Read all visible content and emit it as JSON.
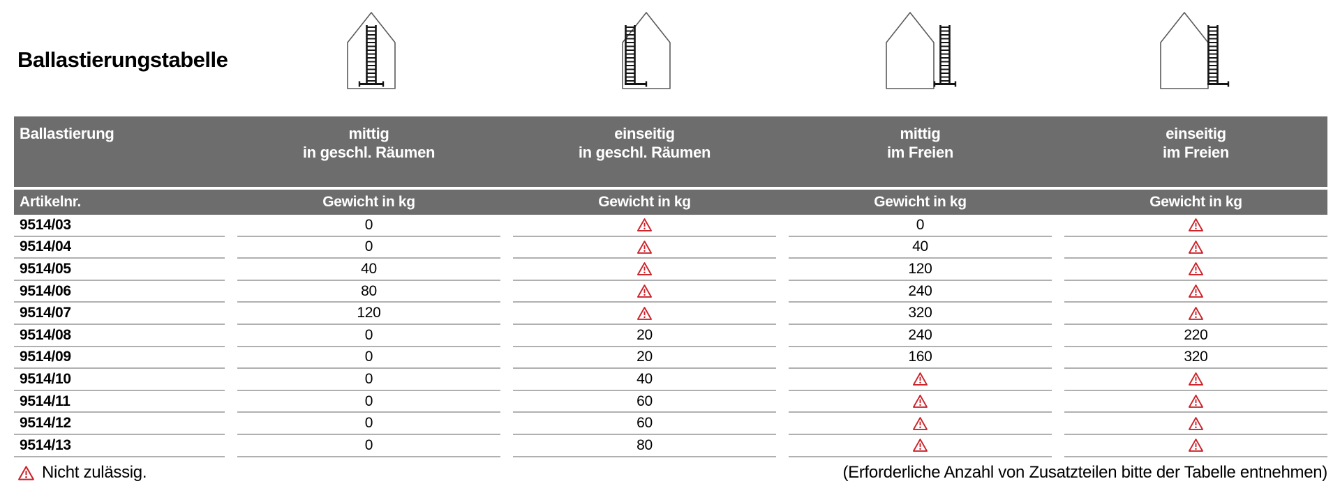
{
  "title": "Ballastierungstabelle",
  "colors": {
    "header_gray": "#6d6d6d",
    "row_line": "#b0b0b0",
    "warning_red": "#cc2229"
  },
  "icons": [
    {
      "name": "house-ladder-centered-indoor-icon"
    },
    {
      "name": "house-ladder-one-side-indoor-icon"
    },
    {
      "name": "house-ladder-centered-outdoor-icon"
    },
    {
      "name": "house-ladder-one-side-outdoor-icon"
    }
  ],
  "table": {
    "group_header": {
      "col1": "Ballastierung",
      "cols": [
        {
          "line1": "mittig",
          "line2": "in geschl. Räumen"
        },
        {
          "line1": "einseitig",
          "line2": "in geschl. Räumen"
        },
        {
          "line1": "mittig",
          "line2": "im Freien"
        },
        {
          "line1": "einseitig",
          "line2": "im Freien"
        }
      ]
    },
    "sub_header": {
      "col1": "Artikelnr.",
      "weight_label": "Gewicht in kg"
    },
    "rows": [
      {
        "art": "9514/03",
        "values": [
          "0",
          "warn",
          "0",
          "warn"
        ]
      },
      {
        "art": "9514/04",
        "values": [
          "0",
          "warn",
          "40",
          "warn"
        ]
      },
      {
        "art": "9514/05",
        "values": [
          "40",
          "warn",
          "120",
          "warn"
        ]
      },
      {
        "art": "9514/06",
        "values": [
          "80",
          "warn",
          "240",
          "warn"
        ]
      },
      {
        "art": "9514/07",
        "values": [
          "120",
          "warn",
          "320",
          "warn"
        ]
      },
      {
        "art": "9514/08",
        "values": [
          "0",
          "20",
          "240",
          "220"
        ]
      },
      {
        "art": "9514/09",
        "values": [
          "0",
          "20",
          "160",
          "320"
        ]
      },
      {
        "art": "9514/10",
        "values": [
          "0",
          "40",
          "warn",
          "warn"
        ]
      },
      {
        "art": "9514/11",
        "values": [
          "0",
          "60",
          "warn",
          "warn"
        ]
      },
      {
        "art": "9514/12",
        "values": [
          "0",
          "60",
          "warn",
          "warn"
        ]
      },
      {
        "art": "9514/13",
        "values": [
          "0",
          "80",
          "warn",
          "warn"
        ]
      }
    ]
  },
  "footer": {
    "legend": "Nicht zulässig.",
    "note": "(Erforderliche Anzahl von Zusatzteilen bitte der Tabelle entnehmen)"
  }
}
